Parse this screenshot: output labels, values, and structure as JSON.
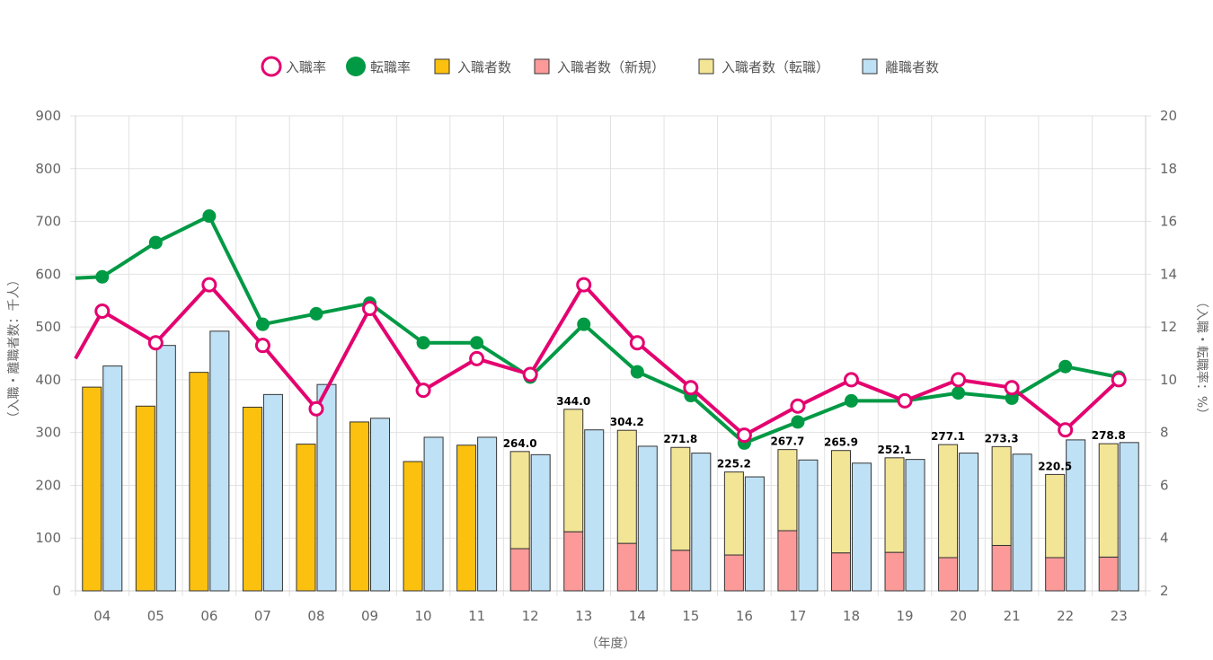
{
  "chart_data": {
    "type": "bar",
    "categories": [
      "04",
      "05",
      "06",
      "07",
      "08",
      "09",
      "10",
      "11",
      "12",
      "13",
      "14",
      "15",
      "16",
      "17",
      "18",
      "19",
      "20",
      "21",
      "22",
      "23"
    ],
    "xlabel": "（年度）",
    "ylabel_left": "（入職・離職者数：千人）",
    "ylabel_right": "（入職・転職率：%）",
    "y_left": {
      "min": 0,
      "max": 900,
      "step": 100
    },
    "y_right": {
      "min": 2,
      "max": 20,
      "step": 2
    },
    "legend_position": "top-center",
    "grid": true,
    "series": [
      {
        "name": "入職率",
        "kind": "line",
        "axis": "right",
        "color": "#e4006f",
        "marker": "hollow",
        "values": [
          12.6,
          11.4,
          13.6,
          11.3,
          8.9,
          12.7,
          9.6,
          10.8,
          10.2,
          13.6,
          11.4,
          9.7,
          7.9,
          9.0,
          10.0,
          9.2,
          10.0,
          9.7,
          8.1,
          10.0
        ]
      },
      {
        "name": "転職率",
        "kind": "line",
        "axis": "right",
        "color": "#009944",
        "marker": "filled",
        "values": [
          13.9,
          15.2,
          16.2,
          12.1,
          12.5,
          12.9,
          11.4,
          11.4,
          10.1,
          12.1,
          10.3,
          9.4,
          7.6,
          8.4,
          9.2,
          9.2,
          9.5,
          9.3,
          10.5,
          10.1
        ]
      },
      {
        "name": "入職者数",
        "kind": "bar",
        "axis": "left",
        "color": "#fcc10f",
        "values": [
          386,
          350,
          414,
          348,
          278,
          320,
          245,
          276,
          null,
          null,
          null,
          null,
          null,
          null,
          null,
          null,
          null,
          null,
          null,
          null
        ]
      },
      {
        "name": "入職者数（新規）",
        "kind": "bar-stack-bottom",
        "axis": "left",
        "color": "#fb9a99",
        "values": [
          null,
          null,
          null,
          null,
          null,
          null,
          null,
          null,
          80,
          112,
          90,
          77,
          68,
          114,
          72,
          73,
          63,
          86,
          63,
          64
        ]
      },
      {
        "name": "入職者数（転職）",
        "kind": "bar-stack-top",
        "axis": "left",
        "color": "#f3e596",
        "values": [
          null,
          null,
          null,
          null,
          null,
          null,
          null,
          null,
          184.0,
          232.0,
          214.2,
          194.8,
          157.2,
          153.7,
          193.9,
          179.1,
          214.1,
          187.3,
          157.5,
          214.8
        ]
      },
      {
        "name": "離職者数",
        "kind": "bar",
        "axis": "left",
        "color": "#bfe1f6",
        "values": [
          426,
          465,
          492,
          372,
          391,
          327,
          291,
          291,
          258,
          305,
          274,
          261,
          216,
          248,
          242,
          249,
          261,
          259,
          286,
          281
        ]
      }
    ],
    "stack_totals": [
      null,
      null,
      null,
      null,
      null,
      null,
      null,
      null,
      "264.0",
      "344.0",
      "304.2",
      "271.8",
      "225.2",
      "267.7",
      "265.9",
      "252.1",
      "277.1",
      "273.3",
      "220.5",
      "278.8"
    ]
  }
}
